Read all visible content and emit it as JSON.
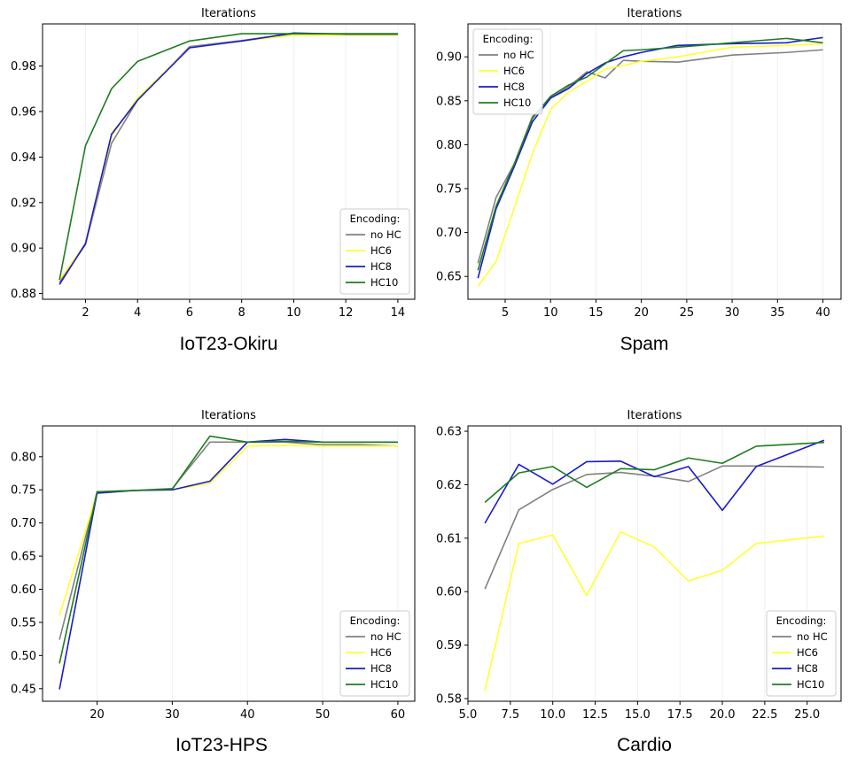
{
  "colors": {
    "no HC": "#808080",
    "HC6": "#ffff33",
    "HC8": "#1a1acc",
    "HC10": "#1e7d1e"
  },
  "chart_data": [
    {
      "type": "line",
      "caption": "IoT23-Okiru",
      "title": "Iterations",
      "xlim": [
        0.35,
        14.65
      ],
      "ylim": [
        0.8775,
        0.9985
      ],
      "xticks": [
        2,
        4,
        6,
        8,
        10,
        12,
        14
      ],
      "yticks": [
        0.88,
        0.9,
        0.92,
        0.94,
        0.96,
        0.98
      ],
      "xtick_labels": [
        "2",
        "4",
        "6",
        "8",
        "10",
        "12",
        "14"
      ],
      "ytick_labels": [
        "0.88",
        "0.90",
        "0.92",
        "0.94",
        "0.96",
        "0.98"
      ],
      "grid": true,
      "legend": {
        "title": "Encoding:",
        "position": "lower-right"
      },
      "x": [
        1,
        2,
        3,
        4,
        6,
        8,
        10,
        12,
        14
      ],
      "series": [
        {
          "name": "no HC",
          "values": [
            0.885,
            0.9015,
            0.946,
            0.965,
            0.9885,
            0.9912,
            0.9942,
            0.9937,
            0.9937
          ]
        },
        {
          "name": "HC6",
          "values": [
            0.886,
            0.902,
            0.949,
            0.966,
            0.988,
            0.991,
            0.9935,
            0.9935,
            0.9935
          ]
        },
        {
          "name": "HC8",
          "values": [
            0.884,
            0.902,
            0.95,
            0.965,
            0.988,
            0.991,
            0.9945,
            0.994,
            0.994
          ]
        },
        {
          "name": "HC10",
          "values": [
            0.886,
            0.945,
            0.97,
            0.982,
            0.991,
            0.9942,
            0.9942,
            0.9942,
            0.9942
          ]
        }
      ]
    },
    {
      "type": "line",
      "caption": "Spam",
      "title": "Iterations",
      "xlim": [
        0.9,
        42.0
      ],
      "ylim": [
        0.624,
        0.9375
      ],
      "xticks": [
        5,
        10,
        15,
        20,
        25,
        30,
        35,
        40
      ],
      "yticks": [
        0.65,
        0.7,
        0.75,
        0.8,
        0.85,
        0.9
      ],
      "xtick_labels": [
        "5",
        "10",
        "15",
        "20",
        "25",
        "30",
        "35",
        "40"
      ],
      "ytick_labels": [
        "0.65",
        "0.70",
        "0.75",
        "0.80",
        "0.85",
        "0.90"
      ],
      "grid": true,
      "legend": {
        "title": "Encoding:",
        "position": "upper-left"
      },
      "x": [
        2,
        4,
        6,
        8,
        10,
        12,
        14,
        16,
        18,
        20,
        24,
        30,
        36,
        40
      ],
      "series": [
        {
          "name": "no HC",
          "values": [
            0.665,
            0.74,
            0.778,
            0.832,
            0.853,
            0.866,
            0.883,
            0.876,
            0.896,
            0.895,
            0.894,
            0.902,
            0.905,
            0.908
          ]
        },
        {
          "name": "HC6",
          "values": [
            0.639,
            0.667,
            0.728,
            0.79,
            0.84,
            0.86,
            0.872,
            0.886,
            0.89,
            0.895,
            0.9,
            0.911,
            0.913,
            0.915
          ]
        },
        {
          "name": "HC8",
          "values": [
            0.648,
            0.727,
            0.775,
            0.826,
            0.853,
            0.864,
            0.881,
            0.893,
            0.9,
            0.905,
            0.913,
            0.915,
            0.916,
            0.922
          ]
        },
        {
          "name": "HC10",
          "values": [
            0.657,
            0.73,
            0.778,
            0.83,
            0.855,
            0.868,
            0.877,
            0.892,
            0.907,
            0.908,
            0.911,
            0.916,
            0.921,
            0.916
          ]
        }
      ]
    },
    {
      "type": "line",
      "caption": "IoT23-HPS",
      "title": "Iterations",
      "xlim": [
        12.75,
        62.25
      ],
      "ylim": [
        0.431,
        0.8465
      ],
      "xticks": [
        20,
        30,
        40,
        50,
        60
      ],
      "yticks": [
        0.45,
        0.5,
        0.55,
        0.6,
        0.65,
        0.7,
        0.75,
        0.8
      ],
      "xtick_labels": [
        "20",
        "30",
        "40",
        "50",
        "60"
      ],
      "ytick_labels": [
        "0.45",
        "0.50",
        "0.55",
        "0.60",
        "0.65",
        "0.70",
        "0.75",
        "0.80"
      ],
      "grid": true,
      "legend": {
        "title": "Encoding:",
        "position": "lower-right"
      },
      "x": [
        15,
        20,
        25,
        30,
        35,
        40,
        45,
        50,
        55,
        60
      ],
      "series": [
        {
          "name": "no HC",
          "values": [
            0.524,
            0.747,
            0.749,
            0.752,
            0.822,
            0.822,
            0.822,
            0.818,
            0.818,
            0.816
          ]
        },
        {
          "name": "HC6",
          "values": [
            0.56,
            0.745,
            0.749,
            0.75,
            0.76,
            0.816,
            0.817,
            0.816,
            0.816,
            0.816
          ]
        },
        {
          "name": "HC8",
          "values": [
            0.449,
            0.745,
            0.749,
            0.75,
            0.763,
            0.822,
            0.826,
            0.822,
            0.822,
            0.822
          ]
        },
        {
          "name": "HC10",
          "values": [
            0.488,
            0.747,
            0.749,
            0.751,
            0.831,
            0.822,
            0.823,
            0.822,
            0.822,
            0.822
          ]
        }
      ]
    },
    {
      "type": "line",
      "caption": "Cardio",
      "title": "Iterations",
      "xlim": [
        5.0,
        27.0
      ],
      "ylim": [
        0.5795,
        0.631
      ],
      "xticks": [
        5.0,
        7.5,
        10.0,
        12.5,
        15.0,
        17.5,
        20.0,
        22.5,
        25.0
      ],
      "yticks": [
        0.58,
        0.59,
        0.6,
        0.61,
        0.62,
        0.63
      ],
      "xtick_labels": [
        "5.0",
        "7.5",
        "10.0",
        "12.5",
        "15.0",
        "17.5",
        "20.0",
        "22.5",
        "25.0"
      ],
      "ytick_labels": [
        "0.58",
        "0.59",
        "0.60",
        "0.61",
        "0.62",
        "0.63"
      ],
      "grid": true,
      "legend": {
        "title": "Encoding:",
        "position": "lower-right"
      },
      "x": [
        6,
        8,
        10,
        12,
        14,
        16,
        18,
        20,
        22,
        26
      ],
      "series": [
        {
          "name": "no HC",
          "values": [
            0.6005,
            0.6153,
            0.6191,
            0.6219,
            0.6223,
            0.6216,
            0.6206,
            0.6235,
            0.6235,
            0.6233
          ]
        },
        {
          "name": "HC6",
          "values": [
            0.5815,
            0.609,
            0.6106,
            0.5993,
            0.6112,
            0.6083,
            0.602,
            0.604,
            0.609,
            0.6104
          ]
        },
        {
          "name": "HC8",
          "values": [
            0.6128,
            0.6238,
            0.6201,
            0.6243,
            0.6244,
            0.6215,
            0.6234,
            0.6152,
            0.6234,
            0.6283
          ]
        },
        {
          "name": "HC10",
          "values": [
            0.6167,
            0.6222,
            0.6234,
            0.6195,
            0.623,
            0.6228,
            0.625,
            0.624,
            0.6272,
            0.6279
          ]
        }
      ]
    }
  ]
}
